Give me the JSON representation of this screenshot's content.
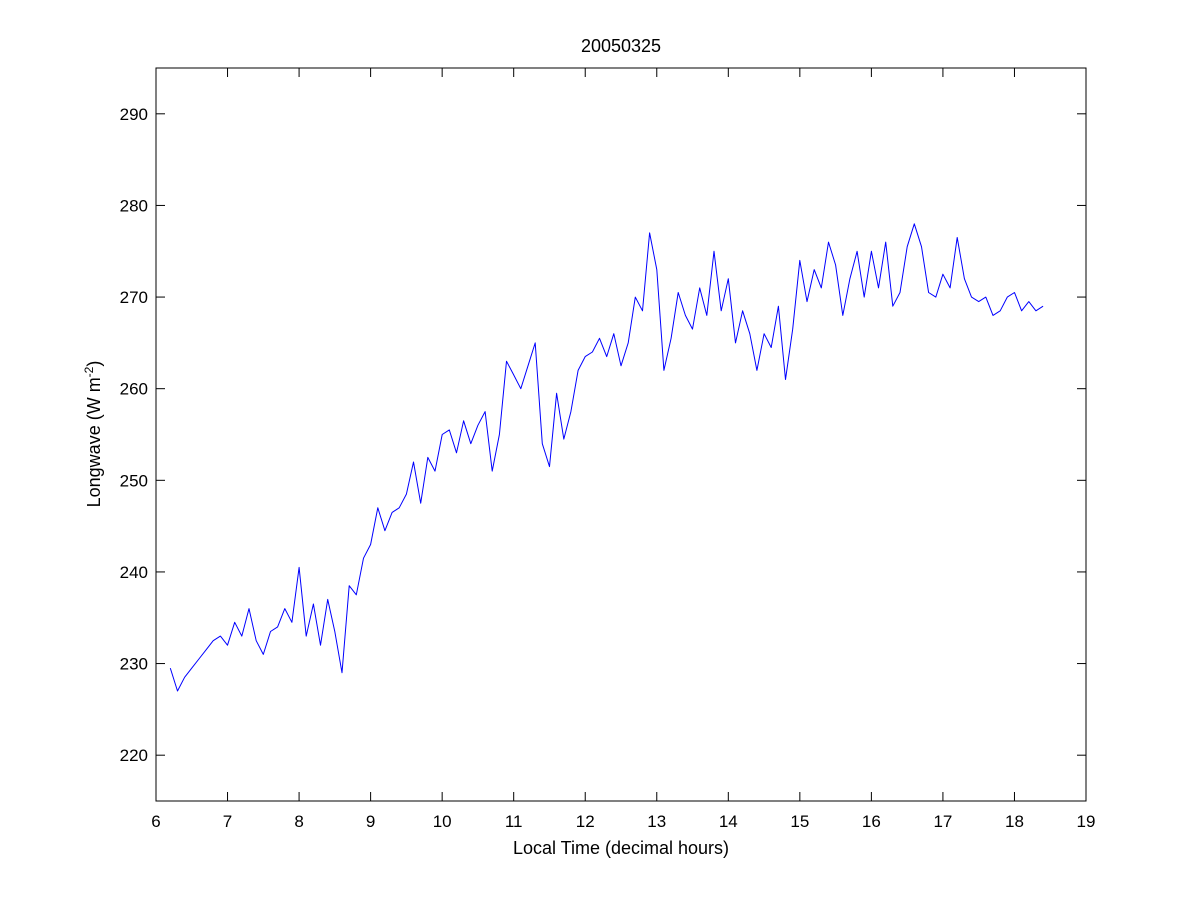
{
  "chart_data": {
    "type": "line",
    "title": "20050325",
    "xlabel": "Local Time (decimal hours)",
    "ylabel": "Longwave (W m",
    "ylabel_sup": "-2",
    "ylabel_close": ")",
    "xlim": [
      6,
      19
    ],
    "ylim": [
      215,
      295
    ],
    "xticks": [
      6,
      7,
      8,
      9,
      10,
      11,
      12,
      13,
      14,
      15,
      16,
      17,
      18,
      19
    ],
    "yticks": [
      220,
      230,
      240,
      250,
      260,
      270,
      280,
      290
    ],
    "grid": false,
    "line_color": "#0000ff",
    "series": [
      {
        "x": [
          6.2,
          6.3,
          6.4,
          6.5,
          6.6,
          6.7,
          6.8,
          6.9,
          7.0,
          7.1,
          7.2,
          7.3,
          7.4,
          7.5,
          7.6,
          7.7,
          7.8,
          7.9,
          8.0,
          8.1,
          8.2,
          8.3,
          8.4,
          8.5,
          8.6,
          8.7,
          8.8,
          8.9,
          9.0,
          9.1,
          9.2,
          9.3,
          9.4,
          9.5,
          9.6,
          9.7,
          9.8,
          9.9,
          10.0,
          10.1,
          10.2,
          10.3,
          10.4,
          10.5,
          10.6,
          10.7,
          10.8,
          10.9,
          11.0,
          11.1,
          11.2,
          11.3,
          11.4,
          11.5,
          11.6,
          11.7,
          11.8,
          11.9,
          12.0,
          12.1,
          12.2,
          12.3,
          12.4,
          12.5,
          12.6,
          12.7,
          12.8,
          12.9,
          13.0,
          13.1,
          13.2,
          13.3,
          13.4,
          13.5,
          13.6,
          13.7,
          13.8,
          13.9,
          14.0,
          14.1,
          14.2,
          14.3,
          14.4,
          14.5,
          14.6,
          14.7,
          14.8,
          14.9,
          15.0,
          15.1,
          15.2,
          15.3,
          15.4,
          15.5,
          15.6,
          15.7,
          15.8,
          15.9,
          16.0,
          16.1,
          16.2,
          16.3,
          16.4,
          16.5,
          16.6,
          16.7,
          16.8,
          16.9,
          17.0,
          17.1,
          17.2,
          17.3,
          17.4,
          17.5,
          17.6,
          17.7,
          17.8,
          17.9,
          18.0,
          18.1,
          18.2,
          18.3,
          18.4
        ],
        "y": [
          229.5,
          227.0,
          228.5,
          229.5,
          230.5,
          231.5,
          232.5,
          233.0,
          232.0,
          234.5,
          233.0,
          236.0,
          232.5,
          231.0,
          233.5,
          234.0,
          236.0,
          234.5,
          240.5,
          233.0,
          236.5,
          232.0,
          237.0,
          233.5,
          229.0,
          238.5,
          237.5,
          241.5,
          243.0,
          247.0,
          244.5,
          246.5,
          247.0,
          248.5,
          252.0,
          247.5,
          252.5,
          251.0,
          255.0,
          255.5,
          253.0,
          256.5,
          254.0,
          256.0,
          257.5,
          251.0,
          255.0,
          263.0,
          261.5,
          260.0,
          262.5,
          265.0,
          254.0,
          251.5,
          259.5,
          254.5,
          257.5,
          262.0,
          263.5,
          264.0,
          265.5,
          263.5,
          266.0,
          262.5,
          265.0,
          270.0,
          268.5,
          277.0,
          273.0,
          262.0,
          265.5,
          270.5,
          268.0,
          266.5,
          271.0,
          268.0,
          275.0,
          268.5,
          272.0,
          265.0,
          268.5,
          266.0,
          262.0,
          266.0,
          264.5,
          269.0,
          261.0,
          266.5,
          274.0,
          269.5,
          273.0,
          271.0,
          276.0,
          273.5,
          268.0,
          272.0,
          275.0,
          270.0,
          275.0,
          271.0,
          276.0,
          269.0,
          270.5,
          275.5,
          278.0,
          275.5,
          270.5,
          270.0,
          272.5,
          271.0,
          276.5,
          272.0,
          270.0,
          269.5,
          270.0,
          268.0,
          268.5,
          270.0,
          270.5,
          268.5,
          269.5,
          268.5,
          269.0
        ]
      }
    ]
  }
}
